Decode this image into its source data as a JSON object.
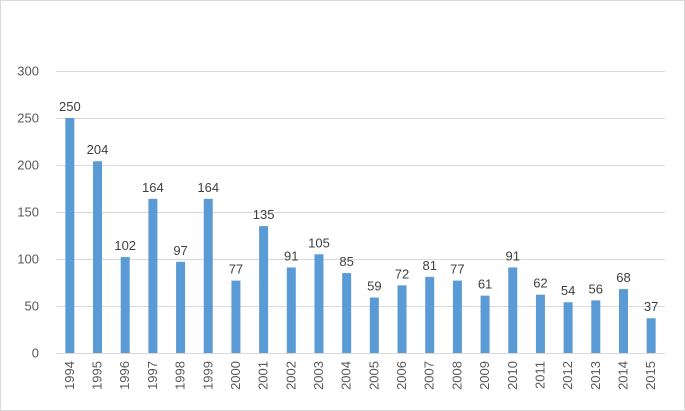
{
  "chart_data": {
    "type": "bar",
    "title": "",
    "xlabel": "",
    "ylabel": "",
    "categories": [
      "1994",
      "1995",
      "1996",
      "1997",
      "1998",
      "1999",
      "2000",
      "2001",
      "2002",
      "2003",
      "2004",
      "2005",
      "2006",
      "2007",
      "2008",
      "2009",
      "2010",
      "2011",
      "2012",
      "2013",
      "2014",
      "2015"
    ],
    "values": [
      250,
      204,
      102,
      164,
      97,
      164,
      77,
      135,
      91,
      105,
      85,
      59,
      72,
      81,
      77,
      61,
      91,
      62,
      54,
      56,
      68,
      37
    ],
    "ylim": [
      0,
      300
    ],
    "yticks": [
      0,
      50,
      100,
      150,
      200,
      250,
      300
    ],
    "grid": true,
    "legend": "none",
    "bar_color": "#5b9bd5",
    "data_labels": true
  }
}
